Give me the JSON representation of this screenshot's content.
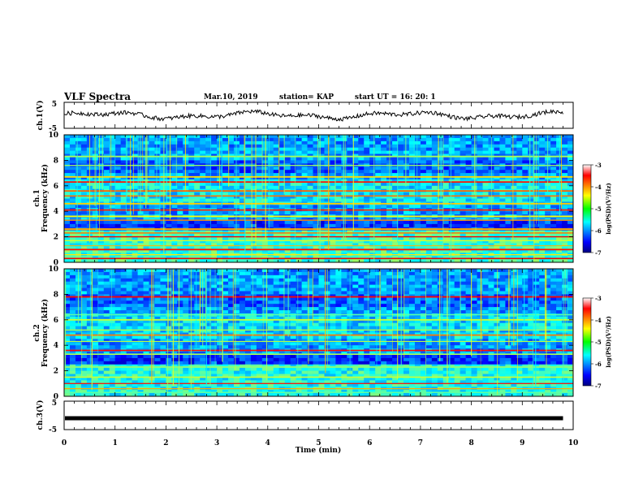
{
  "header": {
    "title": "VLF Spectra",
    "date": "Mar.10, 2019",
    "station": "station= KAP",
    "start_ut": "start  UT =   16: 20: 1"
  },
  "colors": {
    "frame": "#000000",
    "background": "#ffffff"
  },
  "chart_data": [
    {
      "type": "line",
      "name": "ch1-waveform",
      "ylabel": "ch.1(V)",
      "yticks": [
        "5",
        "-5"
      ],
      "ylim": [
        -5,
        5
      ],
      "xlim": [
        0,
        10
      ],
      "note_series": "noisy waveform, amplitude ~ +/-2 V around 0, slow variation"
    },
    {
      "type": "heatmap",
      "name": "ch1-spectrogram",
      "ylabel_top": "ch.1",
      "ylabel": "Frequency (kHz)",
      "yticks": [
        "0",
        "2",
        "4",
        "6",
        "8",
        "10"
      ],
      "ylim": [
        0,
        10
      ],
      "xlim": [
        0,
        10
      ],
      "colorbar": {
        "label": "log(PSD)(V²/Hz)",
        "ticks": [
          "-3",
          "-4",
          "-5",
          "-6",
          "-7"
        ],
        "range": [
          -7,
          -3
        ]
      },
      "lines_khz": [
        0.3,
        0.6,
        1.0,
        1.3,
        1.7,
        2.0,
        2.3,
        2.6,
        3.3,
        3.6,
        4.1,
        4.6,
        5.2,
        5.6,
        6.3,
        6.7,
        7.6,
        8.3
      ]
    },
    {
      "type": "heatmap",
      "name": "ch2-spectrogram",
      "ylabel_top": "ch.2",
      "ylabel": "Frequency (kHz)",
      "yticks": [
        "0",
        "2",
        "4",
        "6",
        "8",
        "10"
      ],
      "ylim": [
        0,
        10
      ],
      "xlim": [
        0,
        10
      ],
      "colorbar": {
        "label": "log(PSD)(V²/Hz)",
        "ticks": [
          "-3",
          "-4",
          "-5",
          "-6",
          "-7"
        ],
        "range": [
          -7,
          -3
        ]
      },
      "lines_khz": [
        0.3,
        0.6,
        1.0,
        1.5,
        2.3,
        3.3,
        3.6,
        4.3,
        4.8,
        5.2,
        6.0,
        6.4,
        7.8
      ]
    },
    {
      "type": "line",
      "name": "ch3-waveform",
      "ylabel": "ch.3(V)",
      "yticks": [
        "5",
        "-5"
      ],
      "ylim": [
        -5,
        5
      ],
      "xlim": [
        0,
        10
      ],
      "values_const": -1
    }
  ],
  "xaxis": {
    "label": "Time  (min)",
    "ticks": [
      "0",
      "1",
      "2",
      "3",
      "4",
      "5",
      "6",
      "7",
      "8",
      "9",
      "10"
    ]
  }
}
